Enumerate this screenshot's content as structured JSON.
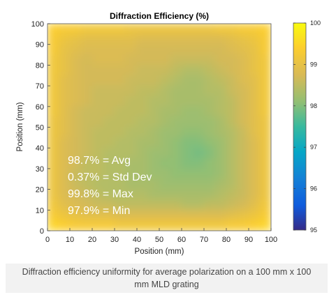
{
  "chart_data": {
    "type": "heatmap",
    "title": "Diffraction Efficiency (%)",
    "xlabel": "Position (mm)",
    "ylabel": "Position (mm)",
    "xlim": [
      0,
      100
    ],
    "ylim": [
      0,
      100
    ],
    "x_ticks": [
      "0",
      "10",
      "20",
      "30",
      "40",
      "50",
      "60",
      "70",
      "80",
      "90",
      "100"
    ],
    "y_ticks": [
      "0",
      "10",
      "20",
      "30",
      "40",
      "50",
      "60",
      "70",
      "80",
      "90",
      "100"
    ],
    "colorbar": {
      "range": [
        95,
        100
      ],
      "ticks": [
        "95",
        "96",
        "97",
        "98",
        "99",
        "100"
      ],
      "colormap": "parula"
    },
    "annotations": [
      "98.7% = Avg",
      "0.37% = Std Dev",
      "99.8% = Max",
      "97.9% = Min"
    ],
    "grid_x_centers": [
      2.5,
      7.5,
      12.5,
      17.5,
      22.5,
      27.5,
      32.5,
      37.5,
      42.5,
      47.5,
      52.5,
      57.5,
      62.5,
      67.5,
      72.5,
      77.5,
      82.5,
      87.5,
      92.5,
      97.5
    ],
    "grid_y_centers": [
      97.5,
      92.5,
      87.5,
      82.5,
      77.5,
      72.5,
      67.5,
      62.5,
      57.5,
      52.5,
      47.5,
      42.5,
      37.5,
      32.5,
      27.5,
      22.5,
      17.5,
      12.5,
      7.5,
      2.5
    ],
    "values": [
      [
        99.4,
        99.3,
        99.3,
        99.2,
        99.2,
        99.2,
        99.2,
        99.1,
        99.1,
        99.1,
        99.1,
        99.1,
        99.1,
        99.1,
        99.1,
        99.2,
        99.2,
        99.3,
        99.3,
        99.4
      ],
      [
        99.3,
        99.1,
        99.0,
        98.9,
        98.9,
        98.9,
        98.9,
        98.9,
        98.8,
        98.8,
        98.8,
        98.8,
        98.8,
        98.8,
        98.8,
        98.8,
        98.9,
        99.0,
        99.1,
        99.3
      ],
      [
        99.3,
        99.0,
        98.9,
        98.8,
        98.8,
        98.8,
        98.8,
        98.8,
        98.7,
        98.7,
        98.7,
        98.7,
        98.7,
        98.7,
        98.7,
        98.7,
        98.8,
        98.9,
        99.0,
        99.3
      ],
      [
        99.2,
        99.0,
        98.8,
        98.7,
        98.8,
        98.8,
        98.8,
        98.7,
        98.7,
        98.7,
        98.7,
        98.6,
        98.6,
        98.6,
        98.6,
        98.7,
        98.7,
        98.8,
        99.0,
        99.2
      ],
      [
        99.2,
        99.0,
        98.8,
        98.7,
        98.7,
        98.7,
        98.7,
        98.7,
        98.6,
        98.6,
        98.6,
        98.5,
        98.4,
        98.4,
        98.5,
        98.6,
        98.7,
        98.8,
        99.0,
        99.2
      ],
      [
        99.2,
        98.9,
        98.8,
        98.7,
        98.7,
        98.7,
        98.7,
        98.6,
        98.6,
        98.6,
        98.5,
        98.4,
        98.3,
        98.3,
        98.4,
        98.5,
        98.6,
        98.8,
        98.9,
        99.2
      ],
      [
        99.2,
        98.9,
        98.8,
        98.7,
        98.6,
        98.6,
        98.6,
        98.6,
        98.5,
        98.5,
        98.4,
        98.3,
        98.3,
        98.3,
        98.4,
        98.4,
        98.6,
        98.7,
        98.9,
        99.2
      ],
      [
        99.2,
        98.9,
        98.8,
        98.7,
        98.6,
        98.6,
        98.6,
        98.5,
        98.5,
        98.4,
        98.4,
        98.3,
        98.3,
        98.3,
        98.3,
        98.4,
        98.5,
        98.7,
        98.9,
        99.2
      ],
      [
        99.2,
        98.9,
        98.7,
        98.6,
        98.6,
        98.6,
        98.5,
        98.5,
        98.5,
        98.4,
        98.3,
        98.3,
        98.2,
        98.2,
        98.3,
        98.4,
        98.5,
        98.7,
        98.9,
        99.2
      ],
      [
        99.1,
        98.9,
        98.7,
        98.6,
        98.6,
        98.5,
        98.5,
        98.5,
        98.4,
        98.4,
        98.3,
        98.2,
        98.2,
        98.2,
        98.2,
        98.3,
        98.5,
        98.7,
        98.9,
        99.1
      ],
      [
        99.1,
        98.9,
        98.7,
        98.6,
        98.5,
        98.5,
        98.5,
        98.4,
        98.4,
        98.3,
        98.2,
        98.2,
        98.1,
        98.1,
        98.2,
        98.3,
        98.4,
        98.6,
        98.9,
        99.1
      ],
      [
        99.1,
        98.8,
        98.7,
        98.6,
        98.5,
        98.5,
        98.4,
        98.4,
        98.3,
        98.3,
        98.2,
        98.1,
        98.0,
        98.0,
        98.1,
        98.2,
        98.4,
        98.6,
        98.8,
        99.1
      ],
      [
        99.1,
        98.8,
        98.7,
        98.6,
        98.5,
        98.4,
        98.4,
        98.4,
        98.3,
        98.2,
        98.2,
        98.1,
        98.0,
        97.9,
        98.0,
        98.2,
        98.4,
        98.6,
        98.8,
        99.1
      ],
      [
        99.1,
        98.8,
        98.7,
        98.5,
        98.5,
        98.4,
        98.4,
        98.3,
        98.3,
        98.2,
        98.1,
        98.1,
        98.0,
        98.0,
        98.1,
        98.2,
        98.4,
        98.6,
        98.8,
        99.1
      ],
      [
        99.1,
        98.8,
        98.6,
        98.5,
        98.5,
        98.4,
        98.4,
        98.3,
        98.3,
        98.2,
        98.2,
        98.1,
        98.1,
        98.1,
        98.1,
        98.2,
        98.4,
        98.6,
        98.8,
        99.1
      ],
      [
        99.1,
        98.8,
        98.6,
        98.5,
        98.4,
        98.4,
        98.4,
        98.3,
        98.3,
        98.3,
        98.2,
        98.2,
        98.2,
        98.2,
        98.2,
        98.3,
        98.4,
        98.6,
        98.8,
        99.1
      ],
      [
        99.1,
        98.8,
        98.7,
        98.6,
        98.5,
        98.4,
        98.4,
        98.4,
        98.4,
        98.3,
        98.3,
        98.3,
        98.3,
        98.3,
        98.3,
        98.4,
        98.5,
        98.6,
        98.8,
        99.1
      ],
      [
        99.2,
        98.9,
        98.8,
        98.7,
        98.6,
        98.6,
        98.5,
        98.5,
        98.5,
        98.5,
        98.5,
        98.5,
        98.4,
        98.4,
        98.5,
        98.5,
        98.6,
        98.7,
        98.9,
        99.2
      ],
      [
        99.3,
        99.1,
        99.0,
        98.9,
        98.9,
        98.9,
        98.8,
        98.8,
        98.8,
        98.8,
        98.8,
        98.8,
        98.8,
        98.8,
        98.8,
        98.8,
        98.9,
        99.0,
        99.1,
        99.3
      ],
      [
        99.5,
        99.4,
        99.3,
        99.3,
        99.3,
        99.3,
        99.2,
        99.2,
        99.2,
        99.2,
        99.2,
        99.2,
        99.2,
        99.2,
        99.2,
        99.2,
        99.3,
        99.3,
        99.4,
        99.5
      ]
    ]
  },
  "caption": "Diffraction efficiency uniformity for average polarization on a 100 mm x 100 mm MLD grating"
}
